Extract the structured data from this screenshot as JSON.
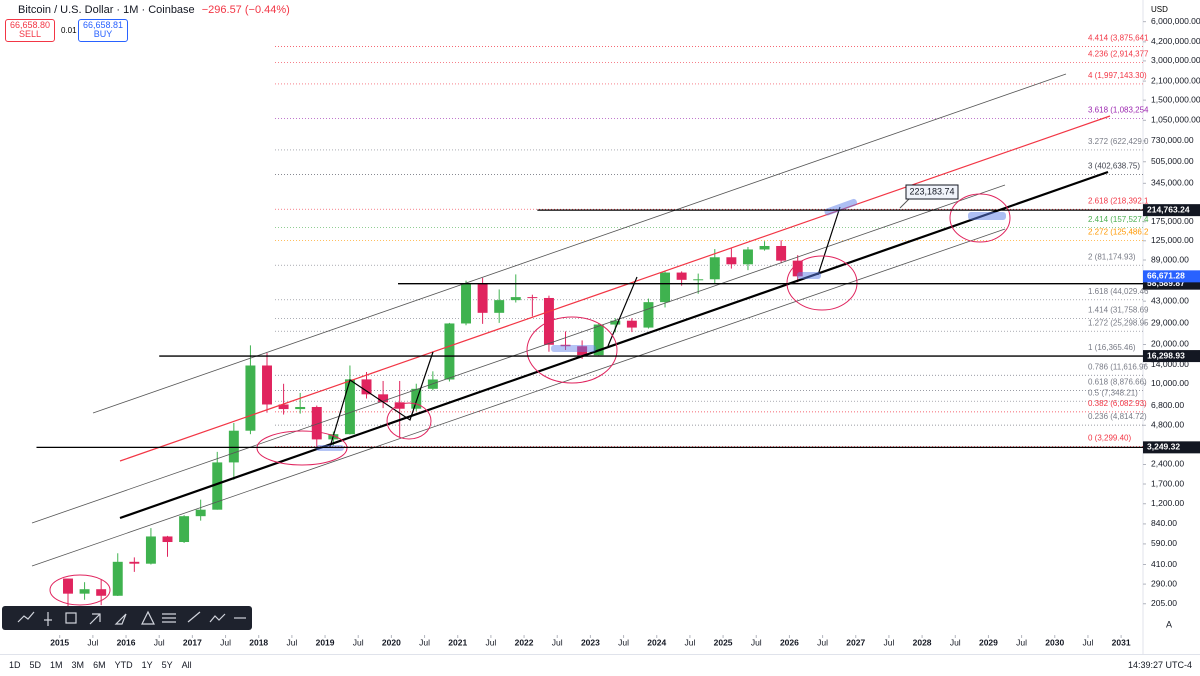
{
  "header": {
    "symbol": "Bitcoin / U.S. Dollar · 1M · Coinbase",
    "change": "−296.57 (−0.44%)",
    "sell_price": "66,658.80",
    "sell": "SELL",
    "spread": "0.01",
    "buy_price": "66,658.81",
    "buy": "BUY",
    "currency": "USD"
  },
  "bottom_bar": {
    "ranges": [
      "1D",
      "5D",
      "1M",
      "3M",
      "6M",
      "YTD",
      "1Y",
      "5Y",
      "All"
    ],
    "time": "14:39:27 UTC-4"
  },
  "chart_data": {
    "type": "candlestick",
    "log_scale": true,
    "x": [
      2015,
      2015.25,
      2015.5,
      2015.75,
      2016,
      2016.25,
      2016.5,
      2016.75,
      2017,
      2017.25,
      2017.5,
      2017.75,
      2018,
      2018.25,
      2018.5,
      2018.75,
      2019,
      2019.25,
      2019.5,
      2019.75,
      2020,
      2020.25,
      2020.5,
      2020.75,
      2021,
      2021.25,
      2021.5,
      2021.75,
      2022,
      2022.25,
      2022.5,
      2022.75,
      2023,
      2023.25,
      2023.5,
      2023.75,
      2024,
      2024.25,
      2024.5,
      2024.75,
      2025,
      2025.25,
      2025.5,
      2025.75,
      2026
    ],
    "open": [
      320,
      245,
      265,
      236,
      430,
      416,
      673,
      610,
      963,
      1080,
      2490,
      4360,
      13800,
      6930,
      6390,
      6630,
      3740,
      4100,
      10800,
      8290,
      7200,
      6430,
      9140,
      10780,
      29000,
      58800,
      35000,
      43800,
      46200,
      45500,
      19900,
      19400,
      16550,
      28450,
      30450,
      26970,
      42260,
      71300,
      62700,
      63300,
      93400,
      82500,
      107200,
      114000,
      88000
    ],
    "high": [
      320,
      300,
      315,
      500,
      465,
      780,
      680,
      980,
      1290,
      3000,
      5000,
      19700,
      17200,
      9990,
      8500,
      6800,
      4300,
      13800,
      12300,
      10500,
      10500,
      10000,
      12450,
      29300,
      61800,
      64900,
      52900,
      69000,
      48200,
      47400,
      25200,
      21500,
      29200,
      31800,
      31800,
      45000,
      73800,
      72800,
      70000,
      108000,
      109500,
      112000,
      124000,
      126000,
      97000
    ],
    "low": [
      170,
      220,
      200,
      235,
      360,
      410,
      470,
      600,
      890,
      1080,
      1830,
      4100,
      6000,
      5800,
      5900,
      3100,
      3350,
      4070,
      7700,
      6500,
      3850,
      6150,
      8900,
      10400,
      28100,
      28800,
      29300,
      42000,
      32900,
      17600,
      18150,
      15500,
      16500,
      24800,
      24900,
      26500,
      38500,
      56500,
      49000,
      58900,
      76500,
      74400,
      105000,
      84000,
      60000
    ],
    "close": [
      245,
      265,
      236,
      430,
      416,
      673,
      610,
      963,
      1080,
      2490,
      4360,
      13800,
      6930,
      6390,
      6630,
      3740,
      4100,
      10800,
      8290,
      7200,
      6430,
      9140,
      10780,
      29000,
      58800,
      35000,
      43800,
      46200,
      45500,
      19900,
      19400,
      16550,
      28450,
      30450,
      26970,
      42260,
      71300,
      62700,
      63300,
      93400,
      82500,
      107200,
      114000,
      88000,
      66671.28
    ],
    "up_color": "#3fb24f",
    "down_color": "#e0245e",
    "xlim": [
      2014.1,
      2031.33
    ],
    "ylim": [
      118,
      8800000
    ],
    "xticks": [
      2015,
      {
        "value": 2015.5,
        "label": "Jul"
      },
      2016,
      {
        "value": 2016.5,
        "label": "Jul"
      },
      2017,
      {
        "value": 2017.5,
        "label": "Jul"
      },
      2018,
      {
        "value": 2018.5,
        "label": "Jul"
      },
      2019,
      {
        "value": 2019.5,
        "label": "Jul"
      },
      2020,
      {
        "value": 2020.5,
        "label": "Jul"
      },
      2021,
      {
        "value": 2021.5,
        "label": "Jul"
      },
      2022,
      {
        "value": 2022.5,
        "label": "Jul"
      },
      2023,
      {
        "value": 2023.5,
        "label": "Jul"
      },
      2024,
      {
        "value": 2024.5,
        "label": "Jul"
      },
      2025,
      {
        "value": 2025.5,
        "label": "Jul"
      },
      2026,
      {
        "value": 2026.5,
        "label": "Jul"
      },
      2027,
      {
        "value": 2027.5,
        "label": "Jul"
      },
      2028,
      {
        "value": 2028.5,
        "label": "Jul"
      },
      2029,
      {
        "value": 2029.5,
        "label": "Jul"
      },
      2030,
      {
        "value": 2030.5,
        "label": "Jul"
      },
      2031
    ],
    "yticks": [
      {
        "value": 6000000,
        "label": "6,000,000.00"
      },
      {
        "value": 4200000,
        "label": "4,200,000.00"
      },
      {
        "value": 3000000,
        "label": "3,000,000.00"
      },
      {
        "value": 2100000,
        "label": "2,100,000.00"
      },
      {
        "value": 1500000,
        "label": "1,500,000.00"
      },
      {
        "value": 1050000,
        "label": "1,050,000.00"
      },
      {
        "value": 730000,
        "label": "730,000.00"
      },
      {
        "value": 505000,
        "label": "505,000.00"
      },
      {
        "value": 345000,
        "label": "345,000.00"
      },
      {
        "value": 175000,
        "label": "175,000.00"
      },
      {
        "value": 125000,
        "label": "125,000.00"
      },
      {
        "value": 89000,
        "label": "89,000.00"
      },
      {
        "value": 43000,
        "label": "43,000.00"
      },
      {
        "value": 29000,
        "label": "29,000.00"
      },
      {
        "value": 20000,
        "label": "20,000.00"
      },
      {
        "value": 14000,
        "label": "14,000.00"
      },
      {
        "value": 10000,
        "label": "10,000.00"
      },
      {
        "value": 6800,
        "label": "6,800.00"
      },
      {
        "value": 4800,
        "label": "4,800.00"
      },
      {
        "value": 2400,
        "label": "2,400.00"
      },
      {
        "value": 1700,
        "label": "1,700.00"
      },
      {
        "value": 1200,
        "label": "1,200.00"
      },
      {
        "value": 840,
        "label": "840.00"
      },
      {
        "value": 590,
        "label": "590.00"
      },
      {
        "value": 410,
        "label": "410.00"
      },
      {
        "value": 290,
        "label": "290.00"
      },
      {
        "value": 205,
        "label": "205.00"
      }
    ],
    "fib_levels": [
      {
        "label": "4.414 (3,875,641",
        "value": 3875641,
        "color": "#f23645"
      },
      {
        "label": "4.236 (2,914,377",
        "value": 2914377,
        "color": "#f23645"
      },
      {
        "label": "4 (1,997,143.30)",
        "value": 1997143.3,
        "color": "#f23645"
      },
      {
        "label": "3.618 (1,083,254",
        "value": 1083254,
        "color": "#9c27b0"
      },
      {
        "label": "3.272 (622,429.0",
        "value": 622429.0,
        "color": "#787b86"
      },
      {
        "label": "3 (402,638.75)",
        "value": 402638.75,
        "color": "#434651"
      },
      {
        "label": "2.618 (218,392.1",
        "value": 218392.1,
        "color": "#f23645"
      },
      {
        "label": "2.414 (157,527.4",
        "value": 157527.4,
        "color": "#4caf50"
      },
      {
        "label": "2.272 (125,486.2",
        "value": 125486.2,
        "color": "#ff9800"
      },
      {
        "label": "2 (81,174.93)",
        "value": 81174.93,
        "color": "#787b86"
      },
      {
        "label": "1.618 (44,029.46",
        "value": 44029.46,
        "color": "#787b86"
      },
      {
        "label": "1.414 (31,758.69",
        "value": 31758.69,
        "color": "#787b86"
      },
      {
        "label": "1.272 (25,298.95",
        "value": 25298.95,
        "color": "#787b86"
      },
      {
        "label": "1 (16,365.46)",
        "value": 16365.46,
        "color": "#787b86"
      },
      {
        "label": "0.786 (11,616.96",
        "value": 11616.96,
        "color": "#787b86"
      },
      {
        "label": "0.618 (8,876.66)",
        "value": 8876.66,
        "color": "#787b86"
      },
      {
        "label": "0.5 (7,348.21)",
        "value": 7348.21,
        "color": "#787b86"
      },
      {
        "label": "0.382 (6,082.93)",
        "value": 6082.93,
        "color": "#f23645"
      },
      {
        "label": "0.236 (4,814.72)",
        "value": 4814.72,
        "color": "#787b86"
      },
      {
        "label": "0 (3,299.40)",
        "value": 3299.4,
        "color": "#f23645"
      }
    ],
    "price_lines": [
      {
        "value": 214763.24,
        "label": "214,763.24",
        "from": 2022.2
      },
      {
        "value": 58589.87,
        "label": "58,589.87",
        "from": 2020.1
      },
      {
        "value": 16298.93,
        "label": "16,298.93",
        "from": 2016.5
      },
      {
        "value": 3249.32,
        "label": "3,249.32",
        "from": 2014.65
      }
    ],
    "last_price": {
      "value": 66671.28,
      "label": "66,671.28",
      "color": "#2962ff"
    },
    "annotation": "223,183.74"
  }
}
